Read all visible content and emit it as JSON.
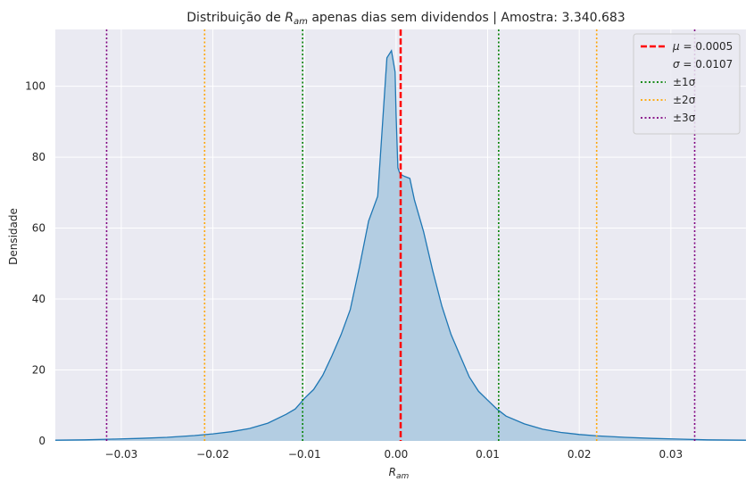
{
  "chart_data": {
    "type": "area",
    "title_main": "Distribuição de ",
    "title_var": "R",
    "title_sub": "am",
    "title_rest": " apenas dias sem dividendos | Amostra: 3.340.683",
    "xlabel_var": "R",
    "xlabel_sub": "am",
    "ylabel": "Densidade",
    "xlim": [
      -0.0372,
      0.0382
    ],
    "ylim": [
      0,
      116
    ],
    "xticks": [
      -0.03,
      -0.02,
      -0.01,
      0.0,
      0.01,
      0.02,
      0.03
    ],
    "xtick_labels": [
      "−0.03",
      "−0.02",
      "−0.01",
      "0.00",
      "0.01",
      "0.02",
      "0.03"
    ],
    "yticks": [
      0,
      20,
      40,
      60,
      80,
      100
    ],
    "ytick_labels": [
      "0",
      "20",
      "40",
      "60",
      "80",
      "100"
    ],
    "grid": true,
    "background": "#eaeaf2",
    "series": [
      {
        "color": "#1f77b4",
        "fill_color": "#b3cde2",
        "x": [
          -0.0372,
          -0.034,
          -0.031,
          -0.028,
          -0.025,
          -0.022,
          -0.02,
          -0.018,
          -0.016,
          -0.014,
          -0.012,
          -0.011,
          -0.0105,
          -0.01,
          -0.009,
          -0.008,
          -0.007,
          -0.006,
          -0.005,
          -0.004,
          -0.003,
          -0.002,
          -0.001,
          -0.0005,
          -0.0001,
          0.0,
          0.0002,
          0.0004,
          0.0006,
          0.001,
          0.0015,
          0.002,
          0.003,
          0.004,
          0.005,
          0.006,
          0.007,
          0.008,
          0.009,
          0.01,
          0.011,
          0.012,
          0.014,
          0.016,
          0.018,
          0.02,
          0.022,
          0.025,
          0.028,
          0.031,
          0.034,
          0.0382
        ],
        "y": [
          0.2,
          0.3,
          0.5,
          0.7,
          1.0,
          1.5,
          2.0,
          2.6,
          3.5,
          5.0,
          7.5,
          9.0,
          10.5,
          12.0,
          14.5,
          18.5,
          24.0,
          30.0,
          37.0,
          49.0,
          62.0,
          69.0,
          108.0,
          110.0,
          104.0,
          92.0,
          77.0,
          75.5,
          75.0,
          74.5,
          74.0,
          68.0,
          59.0,
          48.0,
          38.0,
          30.0,
          24.0,
          18.0,
          14.0,
          11.5,
          9.0,
          7.0,
          4.8,
          3.3,
          2.4,
          1.8,
          1.4,
          1.0,
          0.7,
          0.5,
          0.3,
          0.2
        ]
      }
    ],
    "vlines": [
      {
        "x": 0.0005,
        "color": "#ff0000",
        "style": "dashed",
        "width": 2.5
      },
      {
        "x": -0.0102,
        "color": "#008000",
        "style": "dotted",
        "width": 1.6
      },
      {
        "x": 0.0112,
        "color": "#008000",
        "style": "dotted",
        "width": 1.6
      },
      {
        "x": -0.0209,
        "color": "#ffa500",
        "style": "dotted",
        "width": 1.6
      },
      {
        "x": 0.0219,
        "color": "#ffa500",
        "style": "dotted",
        "width": 1.6
      },
      {
        "x": -0.0316,
        "color": "#800080",
        "style": "dotted",
        "width": 1.6
      },
      {
        "x": 0.0326,
        "color": "#800080",
        "style": "dotted",
        "width": 1.6
      }
    ],
    "legend": {
      "position": "top-right",
      "entries": [
        {
          "greek": "μ",
          "text": " = 0.0005",
          "color": "#ff0000",
          "style": "dashed"
        },
        {
          "greek": "σ",
          "text": " = 0.0107",
          "color": "none",
          "style": "none"
        },
        {
          "greek": "",
          "text": "±1σ",
          "color": "#008000",
          "style": "dotted"
        },
        {
          "greek": "",
          "text": "±2σ",
          "color": "#ffa500",
          "style": "dotted"
        },
        {
          "greek": "",
          "text": "±3σ",
          "color": "#800080",
          "style": "dotted"
        }
      ]
    }
  }
}
